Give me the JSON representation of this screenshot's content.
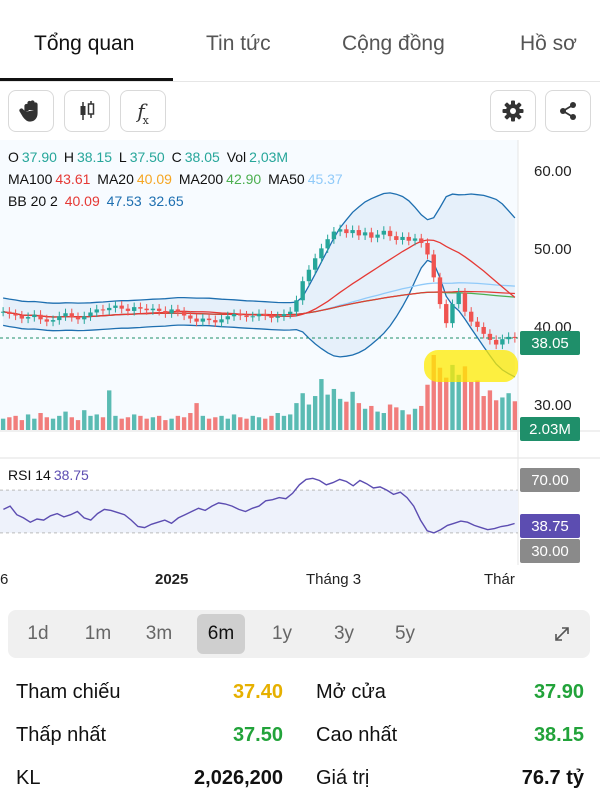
{
  "tabs": [
    {
      "label": "Tổng quan",
      "active": true
    },
    {
      "label": "Tin tức",
      "active": false
    },
    {
      "label": "Cộng đồng",
      "active": false
    },
    {
      "label": "Hồ sơ",
      "active": false
    }
  ],
  "toolbar": {
    "fx_label": "f",
    "fx_sub": "x",
    "icons": [
      "hand-icon",
      "candlestick-icon",
      "fx-icon",
      "gear-icon",
      "share-icon"
    ]
  },
  "legend": {
    "ohlc": {
      "O": "O",
      "o_val": "37.90",
      "H": "H",
      "h_val": "38.15",
      "L": "L",
      "l_val": "37.50",
      "C": "C",
      "c_val": "38.05",
      "Vol": "Vol",
      "vol_val": "2,03M"
    },
    "ma": {
      "ma100": "MA100",
      "ma100_val": "43.61",
      "ma20": "MA20",
      "ma20_val": "40.09",
      "ma200": "MA200",
      "ma200_val": "42.90",
      "ma50": "MA50",
      "ma50_val": "45.37"
    },
    "bb": {
      "label": "BB 20 2",
      "v1": "40.09",
      "v2": "47.53",
      "v3": "32.65"
    },
    "rsi": {
      "label": "RSI 14",
      "val": "38.75"
    }
  },
  "colors": {
    "up": "#26a69a",
    "down": "#ef5350",
    "ma100": "#e53935",
    "ma20": "#f5a623",
    "ma200": "#4caf50",
    "ma50": "#90caf9",
    "bb_upper": "#e53935",
    "bb_lower": "#1e6fb0",
    "rsi": "#5c4db1",
    "price_tag": "#1f8f6a",
    "rsi_tag": "#5c4db1",
    "gray_tag": "#8a8a8a",
    "highlight": "#ffeb00"
  },
  "chart_data": {
    "type": "candlestick",
    "price_axis": [
      "60.00",
      "50.00",
      "40.00",
      "30.00"
    ],
    "price_range": [
      26,
      64
    ],
    "last_price": "38.05",
    "last_volume": "2.03M",
    "x_labels": [
      "6",
      "2025",
      "Tháng 3",
      "Thár"
    ],
    "rsi_axis": [
      "70.00",
      "30.00"
    ],
    "rsi_value": "38.75",
    "close_series": [
      41.5,
      41.2,
      41.0,
      40.6,
      40.8,
      41.1,
      40.5,
      40.2,
      40.4,
      40.9,
      41.3,
      40.8,
      40.5,
      40.9,
      41.4,
      41.8,
      41.7,
      42.0,
      42.3,
      41.9,
      41.6,
      42.1,
      41.9,
      41.7,
      41.9,
      41.6,
      41.3,
      41.8,
      41.5,
      41.0,
      40.6,
      40.2,
      40.6,
      40.4,
      40.1,
      40.5,
      40.9,
      41.2,
      41.0,
      40.8,
      40.9,
      41.2,
      41.0,
      40.7,
      40.9,
      41.2,
      41.5,
      43.0,
      45.5,
      47.0,
      48.5,
      49.8,
      51.0,
      52.0,
      52.3,
      51.8,
      52.2,
      51.5,
      51.9,
      51.2,
      51.6,
      52.1,
      51.4,
      50.9,
      51.3,
      50.8,
      51.1,
      50.5,
      49.0,
      46.0,
      42.5,
      40.0,
      42.5,
      44.0,
      41.5,
      40.2,
      39.5,
      38.6,
      37.8,
      37.2,
      37.9,
      38.2,
      38.05
    ],
    "volume_series": [
      0.8,
      0.9,
      1.0,
      0.7,
      1.1,
      0.8,
      1.2,
      0.9,
      0.8,
      1.0,
      1.3,
      0.9,
      0.7,
      1.4,
      1.0,
      1.1,
      0.9,
      2.8,
      1.0,
      0.8,
      0.9,
      1.1,
      1.0,
      0.8,
      0.9,
      1.0,
      0.7,
      0.8,
      1.0,
      0.9,
      1.2,
      1.9,
      1.0,
      0.8,
      0.9,
      1.0,
      0.8,
      1.1,
      0.9,
      0.8,
      1.0,
      0.9,
      0.8,
      1.0,
      1.2,
      1.0,
      1.1,
      1.9,
      2.6,
      1.8,
      2.4,
      3.6,
      2.5,
      2.9,
      2.2,
      2.0,
      2.7,
      1.9,
      1.5,
      1.7,
      1.3,
      1.2,
      1.8,
      1.6,
      1.4,
      1.1,
      1.5,
      1.7,
      3.2,
      5.3,
      4.4,
      3.7,
      4.6,
      3.9,
      4.5,
      3.4,
      3.5,
      2.4,
      2.8,
      2.1,
      2.3,
      2.6,
      2.03
    ],
    "rsi_series": [
      52,
      55,
      47,
      44,
      40,
      43,
      42,
      46,
      48,
      45,
      47,
      50,
      44,
      42,
      48,
      52,
      51,
      49,
      47,
      42,
      36,
      35,
      38,
      40,
      42,
      39,
      44,
      47,
      50,
      53,
      51,
      55,
      58,
      57,
      55,
      52,
      50,
      53,
      55,
      60,
      61,
      63,
      62,
      67,
      75,
      80,
      81,
      79,
      75,
      77,
      80,
      78,
      74,
      79,
      76,
      72,
      73,
      70,
      66,
      68,
      63,
      55,
      42,
      32,
      30,
      33,
      37,
      39,
      41,
      40,
      37,
      35,
      33,
      34,
      36,
      37,
      38.75
    ]
  },
  "ranges": {
    "items": [
      "1d",
      "1m",
      "3m",
      "6m",
      "1y",
      "3y",
      "5y"
    ],
    "active": "6m",
    "expand_icon": "expand-icon"
  },
  "stats": {
    "tham_chieu_label": "Tham chiếu",
    "tham_chieu_val": "37.40",
    "mo_cua_label": "Mở cửa",
    "mo_cua_val": "37.90",
    "thap_nhat_label": "Thấp nhất",
    "thap_nhat_val": "37.50",
    "cao_nhat_label": "Cao nhất",
    "cao_nhat_val": "38.15",
    "kl_label": "KL",
    "kl_val": "2,026,200",
    "gia_tri_label": "Giá trị",
    "gia_tri_val": "76.7 tỷ",
    "colors": {
      "ref": "#e6b000",
      "up": "#22a33a",
      "neutral": "#111111"
    }
  }
}
